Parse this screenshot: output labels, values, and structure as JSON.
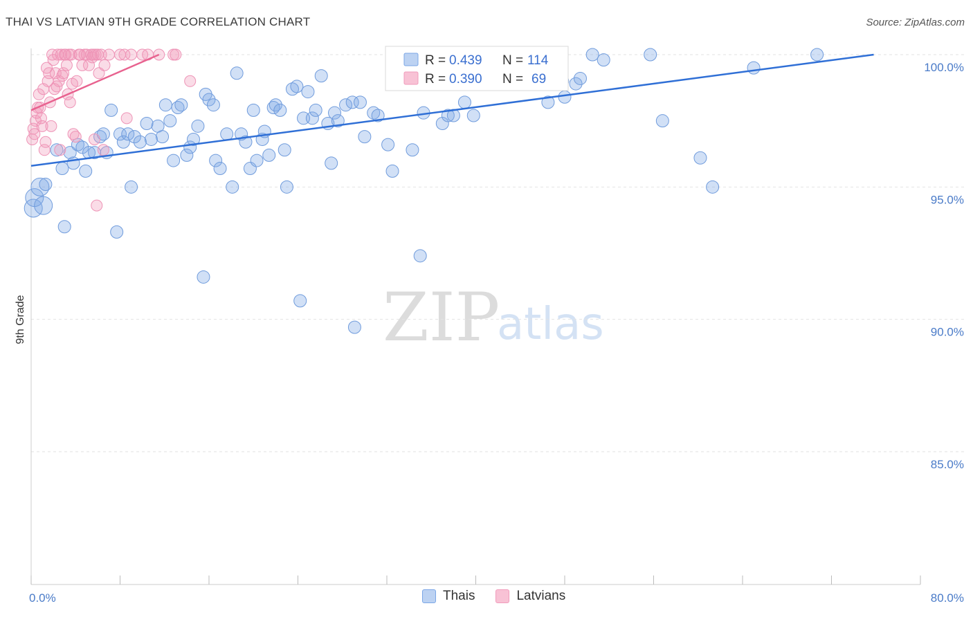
{
  "title": "THAI VS LATVIAN 9TH GRADE CORRELATION CHART",
  "source": "Source: ZipAtlas.com",
  "watermark": {
    "zip": "ZIP",
    "atlas": "atlas"
  },
  "colors": {
    "thais": "#7aa6e6",
    "thais_line": "#2f6fd6",
    "latvians": "#f19bbb",
    "latvians_line": "#e8628f"
  },
  "legend": {
    "r_label": "R =",
    "n_label": "N =",
    "thais": {
      "r": "0.439",
      "n": "114"
    },
    "latvians": {
      "r": "0.390",
      "n": "69"
    }
  },
  "bottom_legend": {
    "thais": "Thais",
    "latvians": "Latvians"
  },
  "chart_data": {
    "type": "scatter",
    "title": "THAI VS LATVIAN 9TH GRADE CORRELATION CHART",
    "ylabel": "9th Grade",
    "xlabel": "",
    "xlim": [
      0,
      80
    ],
    "ylim": [
      80.5,
      100.8
    ],
    "x_tick_labels": [
      "0.0%",
      "80.0%"
    ],
    "y_ticks": [
      85,
      90,
      95,
      100
    ],
    "y_tick_labels": [
      "85.0%",
      "90.0%",
      "95.0%",
      "100.0%"
    ],
    "grid": true,
    "series": [
      {
        "name": "Thais",
        "trend": [
          [
            0,
            95.8
          ],
          [
            75.8,
            100
          ]
        ],
        "points": [
          [
            0.2,
            94.2
          ],
          [
            0.3,
            94.6
          ],
          [
            0.8,
            95.0
          ],
          [
            1.1,
            94.3
          ],
          [
            1.3,
            95.1
          ],
          [
            2.3,
            96.4
          ],
          [
            2.8,
            95.7
          ],
          [
            3.0,
            93.5
          ],
          [
            3.5,
            96.3
          ],
          [
            3.8,
            95.9
          ],
          [
            4.2,
            96.6
          ],
          [
            4.6,
            96.5
          ],
          [
            4.9,
            95.6
          ],
          [
            5.2,
            96.3
          ],
          [
            5.7,
            96.3
          ],
          [
            6.2,
            96.9
          ],
          [
            6.5,
            97.0
          ],
          [
            6.8,
            96.3
          ],
          [
            7.2,
            97.9
          ],
          [
            7.7,
            93.3
          ],
          [
            8.0,
            97.0
          ],
          [
            8.3,
            96.7
          ],
          [
            8.7,
            97.0
          ],
          [
            9.0,
            95.0
          ],
          [
            9.3,
            96.9
          ],
          [
            9.8,
            96.7
          ],
          [
            10.4,
            97.4
          ],
          [
            10.8,
            96.8
          ],
          [
            11.4,
            97.3
          ],
          [
            11.8,
            96.9
          ],
          [
            12.1,
            98.1
          ],
          [
            12.5,
            97.5
          ],
          [
            12.8,
            96.0
          ],
          [
            13.2,
            98.0
          ],
          [
            13.5,
            98.1
          ],
          [
            14.0,
            96.2
          ],
          [
            14.3,
            96.5
          ],
          [
            14.6,
            96.8
          ],
          [
            15.0,
            97.3
          ],
          [
            15.5,
            91.6
          ],
          [
            15.7,
            98.5
          ],
          [
            16.0,
            98.3
          ],
          [
            16.4,
            98.1
          ],
          [
            16.6,
            96.0
          ],
          [
            17.0,
            95.7
          ],
          [
            17.6,
            97.0
          ],
          [
            18.1,
            95.0
          ],
          [
            18.5,
            99.3
          ],
          [
            18.9,
            97.0
          ],
          [
            19.3,
            96.7
          ],
          [
            19.7,
            95.7
          ],
          [
            20.0,
            97.9
          ],
          [
            20.3,
            96.0
          ],
          [
            20.8,
            96.8
          ],
          [
            21.0,
            97.1
          ],
          [
            21.4,
            96.2
          ],
          [
            21.8,
            98.0
          ],
          [
            22.0,
            98.1
          ],
          [
            22.4,
            97.9
          ],
          [
            22.8,
            96.4
          ],
          [
            23.0,
            95.0
          ],
          [
            23.5,
            98.7
          ],
          [
            23.9,
            98.8
          ],
          [
            24.2,
            90.7
          ],
          [
            24.5,
            97.6
          ],
          [
            24.9,
            98.6
          ],
          [
            25.3,
            97.6
          ],
          [
            25.6,
            97.9
          ],
          [
            26.1,
            99.2
          ],
          [
            26.7,
            97.4
          ],
          [
            27.0,
            95.9
          ],
          [
            27.3,
            97.8
          ],
          [
            27.6,
            97.5
          ],
          [
            28.3,
            98.1
          ],
          [
            28.9,
            98.2
          ],
          [
            29.1,
            89.7
          ],
          [
            29.6,
            98.2
          ],
          [
            30.0,
            96.9
          ],
          [
            30.8,
            97.8
          ],
          [
            31.2,
            97.7
          ],
          [
            32.1,
            96.6
          ],
          [
            32.5,
            95.6
          ],
          [
            32.8,
            100.0
          ],
          [
            33.4,
            98.9
          ],
          [
            33.8,
            99.0
          ],
          [
            34.3,
            96.4
          ],
          [
            34.7,
            99.2
          ],
          [
            35.0,
            92.4
          ],
          [
            35.3,
            97.8
          ],
          [
            36.0,
            99.6
          ],
          [
            37.0,
            97.4
          ],
          [
            37.5,
            97.7
          ],
          [
            38.0,
            97.7
          ],
          [
            38.4,
            100.0
          ],
          [
            39.0,
            98.2
          ],
          [
            39.8,
            97.7
          ],
          [
            41.6,
            100.0
          ],
          [
            42.5,
            99.7
          ],
          [
            45.2,
            100.0
          ],
          [
            46.5,
            98.2
          ],
          [
            47.8,
            99.0
          ],
          [
            48.0,
            98.4
          ],
          [
            49.0,
            98.9
          ],
          [
            49.4,
            99.1
          ],
          [
            50.5,
            100.0
          ],
          [
            51.5,
            99.8
          ],
          [
            55.7,
            100.0
          ],
          [
            56.8,
            97.5
          ],
          [
            60.2,
            96.1
          ],
          [
            61.3,
            95.0
          ],
          [
            65.0,
            99.5
          ],
          [
            70.7,
            100.0
          ]
        ]
      },
      {
        "name": "Latvians",
        "trend": [
          [
            0,
            97.9
          ],
          [
            11.5,
            100
          ]
        ],
        "points": [
          [
            0.1,
            96.8
          ],
          [
            0.2,
            97.2
          ],
          [
            0.3,
            97.0
          ],
          [
            0.4,
            97.5
          ],
          [
            0.5,
            97.8
          ],
          [
            0.6,
            98.0
          ],
          [
            0.7,
            98.5
          ],
          [
            0.8,
            98.0
          ],
          [
            0.9,
            97.6
          ],
          [
            1.0,
            97.3
          ],
          [
            1.1,
            98.7
          ],
          [
            1.2,
            96.4
          ],
          [
            1.3,
            96.7
          ],
          [
            1.4,
            99.5
          ],
          [
            1.5,
            99.0
          ],
          [
            1.6,
            99.3
          ],
          [
            1.7,
            98.2
          ],
          [
            1.8,
            97.3
          ],
          [
            1.9,
            100.0
          ],
          [
            2.0,
            99.8
          ],
          [
            2.1,
            98.7
          ],
          [
            2.2,
            99.3
          ],
          [
            2.3,
            98.8
          ],
          [
            2.4,
            100.0
          ],
          [
            2.5,
            99.0
          ],
          [
            2.6,
            96.4
          ],
          [
            2.7,
            100.0
          ],
          [
            2.8,
            99.2
          ],
          [
            2.9,
            99.3
          ],
          [
            3.0,
            100.0
          ],
          [
            3.1,
            100.0
          ],
          [
            3.2,
            99.6
          ],
          [
            3.3,
            98.5
          ],
          [
            3.4,
            100.0
          ],
          [
            3.5,
            98.2
          ],
          [
            3.6,
            100.0
          ],
          [
            3.7,
            98.9
          ],
          [
            3.8,
            97.0
          ],
          [
            4.0,
            96.9
          ],
          [
            4.1,
            99.0
          ],
          [
            4.3,
            100.0
          ],
          [
            4.4,
            100.0
          ],
          [
            4.6,
            99.6
          ],
          [
            4.8,
            100.0
          ],
          [
            5.0,
            100.0
          ],
          [
            5.2,
            99.6
          ],
          [
            5.4,
            100.0
          ],
          [
            5.5,
            99.9
          ],
          [
            5.6,
            100.0
          ],
          [
            5.7,
            96.8
          ],
          [
            5.8,
            100.0
          ],
          [
            5.9,
            94.3
          ],
          [
            6.0,
            100.0
          ],
          [
            6.1,
            99.3
          ],
          [
            6.3,
            100.0
          ],
          [
            6.5,
            96.4
          ],
          [
            6.6,
            99.6
          ],
          [
            7.0,
            100.0
          ],
          [
            8.0,
            100.0
          ],
          [
            8.4,
            100.0
          ],
          [
            8.6,
            97.6
          ],
          [
            9.0,
            100.0
          ],
          [
            10.0,
            100.0
          ],
          [
            10.5,
            100.0
          ],
          [
            11.5,
            100.0
          ],
          [
            12.8,
            100.0
          ],
          [
            13.0,
            100.0
          ],
          [
            14.3,
            99.0
          ]
        ]
      }
    ]
  }
}
